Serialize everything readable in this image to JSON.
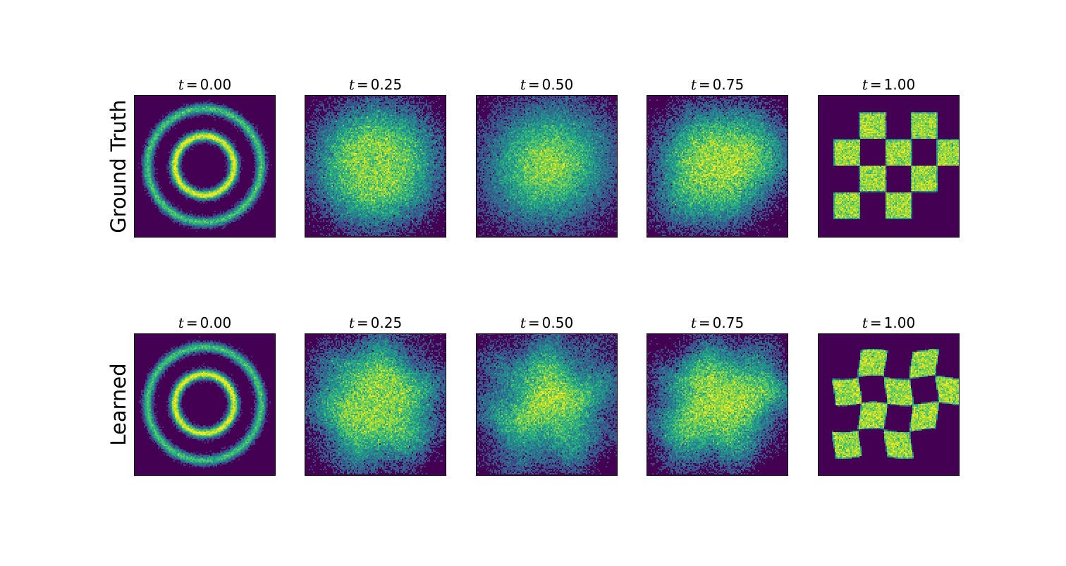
{
  "chart_data": {
    "type": "heatmap",
    "description_free": true,
    "colormap": "viridis",
    "background_color": "#440154",
    "columns": [
      {
        "t": 0.0,
        "title_var": "t",
        "title_eq": "=",
        "title_value": "0.00"
      },
      {
        "t": 0.25,
        "title_var": "t",
        "title_eq": "=",
        "title_value": "0.25"
      },
      {
        "t": 0.5,
        "title_var": "t",
        "title_eq": "=",
        "title_value": "0.50"
      },
      {
        "t": 0.75,
        "title_var": "t",
        "title_eq": "=",
        "title_value": "0.75"
      },
      {
        "t": 1.0,
        "title_var": "t",
        "title_eq": "=",
        "title_value": "1.00"
      }
    ],
    "rows": [
      {
        "label": "Ground Truth",
        "source": "ground_truth"
      },
      {
        "label": "Learned",
        "source": "learned"
      }
    ],
    "start_distribution": "two concentric rings",
    "end_distribution": "checkerboard",
    "axes_ticks": false
  }
}
